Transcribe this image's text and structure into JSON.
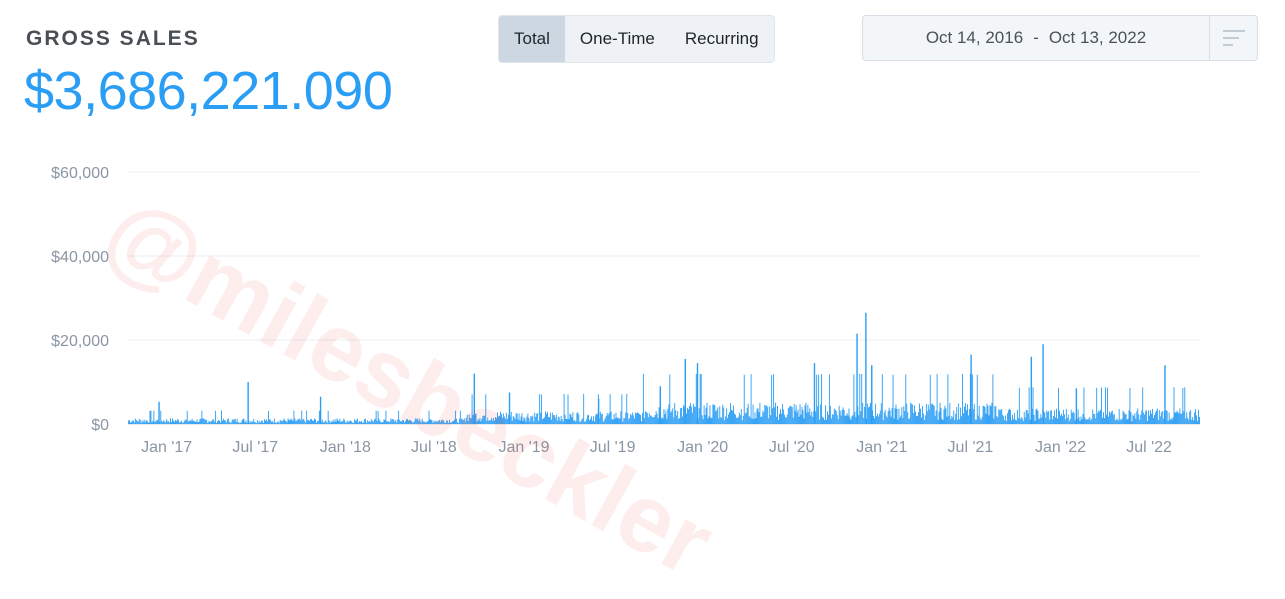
{
  "header": {
    "title": "GROSS SALES",
    "total": "$3,686,221.090"
  },
  "tabs": [
    {
      "label": "Total",
      "active": true
    },
    {
      "label": "One-Time",
      "active": false
    },
    {
      "label": "Recurring",
      "active": false
    }
  ],
  "date_range": {
    "start": "Oct 14, 2016",
    "separator": "-",
    "end": "Oct 13, 2022",
    "menu_icon": "menu-lines-icon"
  },
  "watermark": "@milesbeckler",
  "colors": {
    "accent": "#2a9df4",
    "bar": "#2a9df4",
    "grid": "#e8edf2",
    "axis_text": "#8a96a3"
  },
  "chart_data": {
    "type": "bar",
    "x_start": "2016-10-14",
    "x_end": "2022-10-13",
    "xlabel": "",
    "ylabel": "",
    "ylim": [
      0,
      60000
    ],
    "grid": true,
    "legend": "none",
    "y_ticks": [
      0,
      20000,
      40000,
      60000
    ],
    "y_tick_labels": [
      "$0",
      "$20,000",
      "$40,000",
      "$60,000"
    ],
    "x_tick_dates": [
      "2017-01-01",
      "2017-07-01",
      "2018-01-01",
      "2018-07-01",
      "2019-01-01",
      "2019-07-01",
      "2020-01-01",
      "2020-07-01",
      "2021-01-01",
      "2021-07-01",
      "2022-01-01",
      "2022-07-01"
    ],
    "x_tick_labels": [
      "Jan '17",
      "Jul '17",
      "Jan '18",
      "Jul '18",
      "Jan '19",
      "Jul '19",
      "Jan '20",
      "Jul '20",
      "Jan '21",
      "Jul '21",
      "Jan '22",
      "Jul '22"
    ],
    "spikes": [
      {
        "date": "2016-12-15",
        "value": 5300
      },
      {
        "date": "2017-06-15",
        "value": 10000
      },
      {
        "date": "2017-11-10",
        "value": 6500
      },
      {
        "date": "2018-09-20",
        "value": 12000
      },
      {
        "date": "2018-12-01",
        "value": 7500
      },
      {
        "date": "2019-06-01",
        "value": 6000
      },
      {
        "date": "2019-10-05",
        "value": 9000
      },
      {
        "date": "2019-11-25",
        "value": 15500
      },
      {
        "date": "2019-12-20",
        "value": 14500
      },
      {
        "date": "2020-08-15",
        "value": 14500
      },
      {
        "date": "2020-11-10",
        "value": 21500
      },
      {
        "date": "2020-11-28",
        "value": 26500
      },
      {
        "date": "2020-12-10",
        "value": 14000
      },
      {
        "date": "2021-07-01",
        "value": 16500
      },
      {
        "date": "2021-11-01",
        "value": 16000
      },
      {
        "date": "2021-11-25",
        "value": 19000
      },
      {
        "date": "2022-02-01",
        "value": 8500
      },
      {
        "date": "2022-08-01",
        "value": 14000
      }
    ],
    "baseline_levels": [
      {
        "from": "2016-10-14",
        "to": "2018-09-01",
        "value": 800
      },
      {
        "from": "2018-09-01",
        "to": "2019-09-01",
        "value": 1800
      },
      {
        "from": "2019-09-01",
        "to": "2021-09-01",
        "value": 3000
      },
      {
        "from": "2021-09-01",
        "to": "2022-10-13",
        "value": 2200
      }
    ]
  }
}
